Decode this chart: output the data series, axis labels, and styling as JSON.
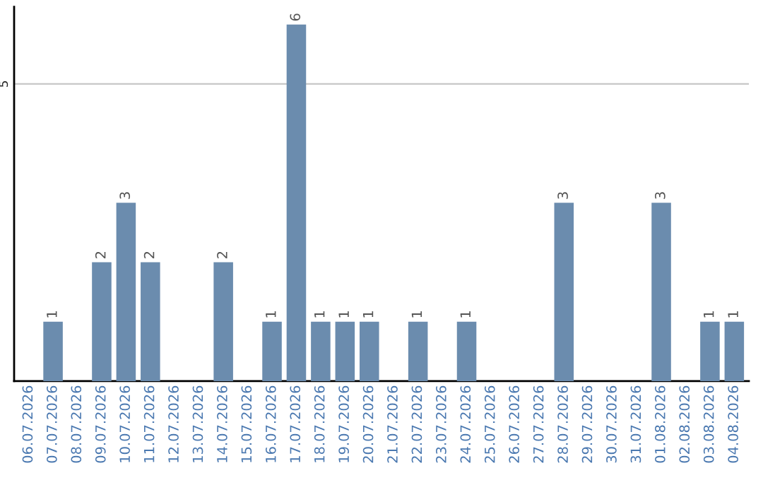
{
  "chart_data": {
    "type": "bar",
    "categories": [
      "06.07.2026",
      "07.07.2026",
      "08.07.2026",
      "09.07.2026",
      "10.07.2026",
      "11.07.2026",
      "12.07.2026",
      "13.07.2026",
      "14.07.2026",
      "15.07.2026",
      "16.07.2026",
      "17.07.2026",
      "18.07.2026",
      "19.07.2026",
      "20.07.2026",
      "21.07.2026",
      "22.07.2026",
      "23.07.2026",
      "24.07.2026",
      "25.07.2026",
      "26.07.2026",
      "27.07.2026",
      "28.07.2026",
      "29.07.2026",
      "30.07.2026",
      "31.07.2026",
      "01.08.2026",
      "02.08.2026",
      "03.08.2026",
      "04.08.2026"
    ],
    "values": [
      0,
      1,
      0,
      2,
      3,
      2,
      0,
      0,
      2,
      0,
      1,
      6,
      1,
      1,
      1,
      0,
      1,
      0,
      1,
      0,
      0,
      0,
      3,
      0,
      0,
      0,
      3,
      0,
      1,
      1
    ],
    "value_labels": [
      null,
      "1",
      null,
      "2",
      "3",
      "2",
      null,
      null,
      "2",
      null,
      "1",
      "6",
      "1",
      "1",
      "1",
      null,
      "1",
      null,
      "1",
      null,
      null,
      null,
      "3",
      null,
      null,
      null,
      "3",
      null,
      "1",
      "1"
    ],
    "color": "#6b8cae",
    "ylim": [
      0,
      6.3
    ],
    "yticks": [
      5
    ],
    "grid": "y"
  }
}
